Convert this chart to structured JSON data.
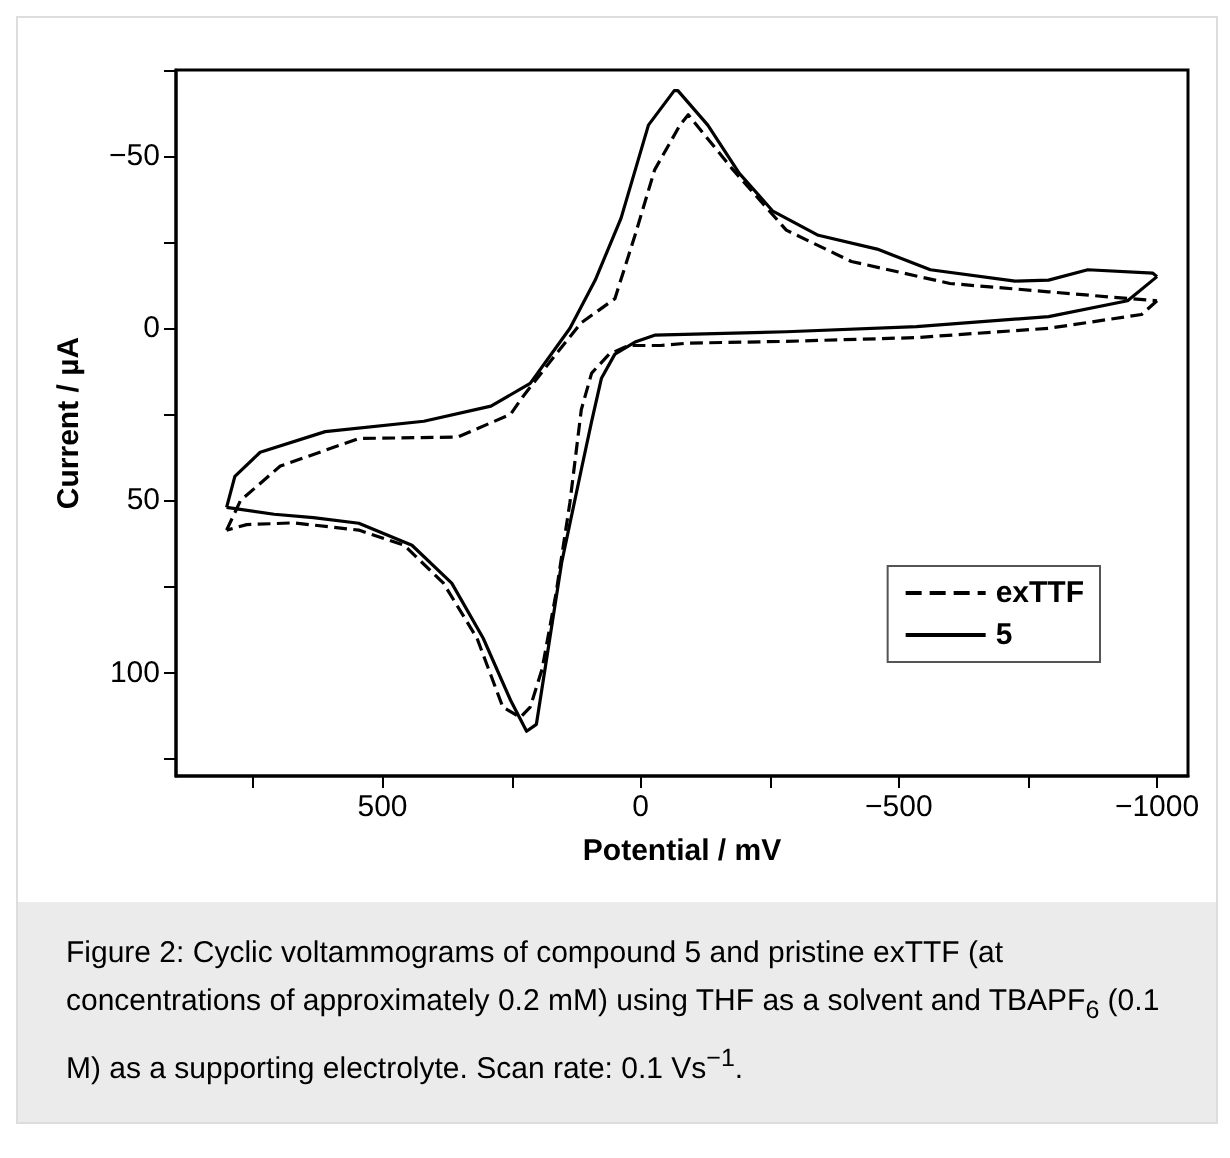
{
  "chart_data": {
    "type": "line",
    "xlabel": "Potential / mV",
    "ylabel": "Current / µA",
    "xlim": [
      900,
      -1060
    ],
    "ylim": [
      130,
      -75
    ],
    "xticks": [
      {
        "value": 750,
        "label": null
      },
      500,
      {
        "value": 250,
        "label": null
      },
      0,
      {
        "value": -250,
        "label": null
      },
      {
        "value": -500,
        "label": "−500"
      },
      {
        "value": -750,
        "label": null
      },
      {
        "value": -1000,
        "label": "−1000"
      }
    ],
    "yticks": [
      {
        "value": -75,
        "label": null
      },
      {
        "value": -50,
        "label": "−50"
      },
      {
        "value": -25,
        "label": null
      },
      0,
      {
        "value": 25,
        "label": null
      },
      50,
      {
        "value": 75,
        "label": null
      },
      100,
      {
        "value": 125,
        "label": null
      }
    ],
    "legend": "bottom right",
    "grid": false,
    "series": [
      {
        "name": "exTTF",
        "color": "#000000",
        "line_style": "dashed",
        "x": [
          802,
          775,
          698,
          546,
          355,
          252,
          229,
          164,
          115,
          50,
          11,
          -27,
          -76,
          -92,
          -179,
          -282,
          -408,
          -599,
          -790,
          -916,
          -1000
        ],
        "values": [
          58.6,
          50,
          40,
          32,
          31.6,
          25,
          20,
          7.5,
          -1.6,
          -8.6,
          -27,
          -46,
          -59,
          -62,
          -46,
          -28.5,
          -19.4,
          -13,
          -10.6,
          -9,
          -8
        ]
      },
      {
        "name": "5",
        "color": "#000000",
        "line_style": "solid",
        "x": [
          802,
          786,
          737,
          611,
          420,
          290,
          214,
          137,
          88,
          38,
          -15,
          -65,
          -72,
          -130,
          -191,
          -256,
          -344,
          -458,
          -561,
          -725,
          -790,
          -866,
          -992,
          -1000
        ],
        "values": [
          52,
          43,
          36,
          30,
          27,
          22.6,
          16,
          0,
          -14,
          -32,
          -59,
          -69,
          -69,
          -59,
          -45,
          -34,
          -27,
          -23,
          -17,
          -13.7,
          -14,
          -17,
          -16,
          -15
        ]
      },
      {
        "color": "#000000",
        "line_style": "dashed",
        "x": [
          -1000,
          -970,
          -790,
          -534,
          -282,
          -92,
          -38,
          23,
          61,
          95,
          115,
          137,
          164,
          191,
          214,
          233,
          267,
          317,
          382,
          458,
          546,
          672,
          763,
          802
        ],
        "values": [
          -8,
          -4,
          0,
          2.7,
          3.8,
          4.3,
          5,
          5,
          7.5,
          13,
          23.6,
          50.5,
          77,
          99,
          110,
          113,
          110,
          90,
          74,
          63,
          58.6,
          56.5,
          57,
          58.6
        ]
      },
      {
        "color": "#000000",
        "line_style": "solid",
        "x": [
          -1000,
          -943,
          -790,
          -534,
          -282,
          -27,
          11,
          50,
          76,
          95,
          115,
          153,
          176,
          202,
          221,
          252,
          305,
          366,
          443,
          546,
          634,
          710,
          802
        ],
        "values": [
          -15,
          -8,
          -3.4,
          -0.5,
          1,
          2,
          4,
          7.5,
          14.5,
          27,
          41,
          68,
          90,
          115,
          117,
          108,
          90,
          74,
          63,
          56.6,
          55,
          54,
          52
        ]
      }
    ],
    "annotations": [
      "Figure 2: Cyclic voltammograms of compound 5 and pristine exTTF (at concentrations of approximately 0.2 mM) using THF as a solvent and TBAPF$_{6}$ (0.1 M) as a supporting electrolyte. Scan rate: 0.1 Vs$^{−1}$."
    ]
  }
}
